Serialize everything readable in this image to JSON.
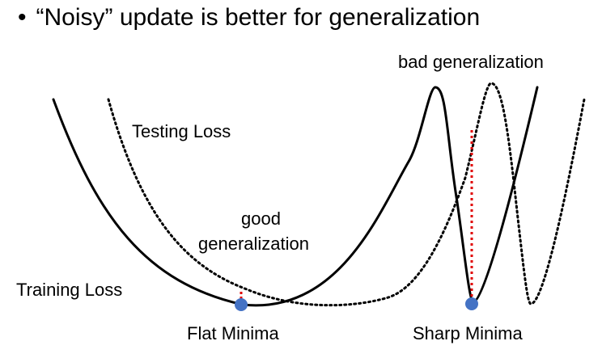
{
  "header": {
    "bullet": "•",
    "text": "“Noisy” update is better for generalization"
  },
  "labels": {
    "bad_generalization": "bad generalization",
    "testing_loss": "Testing Loss",
    "good": "good",
    "generalization": "generalization",
    "training_loss": "Training Loss",
    "flat_minima": "Flat Minima",
    "sharp_minima": "Sharp Minima"
  },
  "colors": {
    "curve": "#000000",
    "minima_dot": "#4472C4",
    "gap_line": "#E00000"
  }
}
